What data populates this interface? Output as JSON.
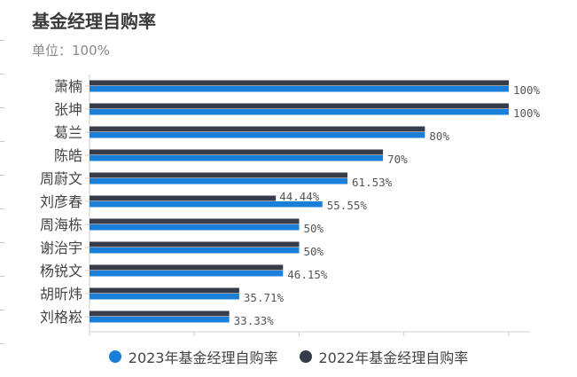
{
  "header": {
    "title": "基金经理自购率",
    "unit": "单位：100%"
  },
  "colors": {
    "series_2023": "#1a7fd8",
    "series_2022": "#363c4a",
    "axis": "#cfcfcf"
  },
  "chart_data": {
    "type": "bar",
    "orientation": "horizontal",
    "categories": [
      "萧楠",
      "张坤",
      "葛兰",
      "陈皓",
      "周蔚文",
      "刘彦春",
      "周海栋",
      "谢治宇",
      "杨锐文",
      "胡昕炜",
      "刘格崧"
    ],
    "series": [
      {
        "name": "2023年基金经理自购率",
        "values": [
          100,
          100,
          80,
          70,
          61.53,
          55.55,
          50,
          50,
          46.15,
          35.71,
          33.33
        ]
      },
      {
        "name": "2022年基金经理自购率",
        "values": [
          100,
          100,
          80,
          70,
          61.53,
          44.44,
          50,
          50,
          46.15,
          35.71,
          33.33
        ]
      }
    ],
    "data_labels": [
      "100%",
      "100%",
      "80%",
      "70%",
      "61.53%",
      "55.55%",
      "50%",
      "50%",
      "46.15%",
      "35.71%",
      "33.33%"
    ],
    "extra_labels": [
      {
        "category": "刘彦春",
        "text": "44.44%"
      }
    ],
    "xlim": [
      0,
      100
    ],
    "legend": "bottom",
    "grid": false
  }
}
